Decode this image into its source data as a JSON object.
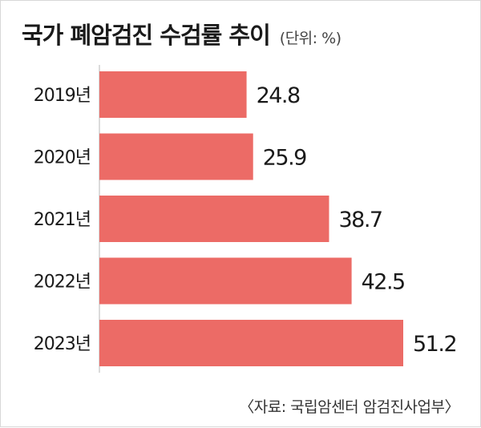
{
  "title": "국가 폐암검진 수검률 추이",
  "unit": "(단위: %)",
  "source": "〈자료: 국립암센터 암검진사업부〉",
  "colors": {
    "bar": "#ec6b66",
    "text": "#1a1a1a",
    "axis": "#cfcfcf"
  },
  "chart_data": {
    "type": "bar",
    "orientation": "horizontal",
    "categories": [
      "2019년",
      "2020년",
      "2021년",
      "2022년",
      "2023년"
    ],
    "values": [
      24.8,
      25.9,
      38.7,
      42.5,
      51.2
    ],
    "data_labels": [
      "24.8",
      "25.9",
      "38.7",
      "42.5",
      "51.2"
    ],
    "unit": "%",
    "xlim": [
      0,
      51.2
    ],
    "grid": false,
    "legend": "none"
  }
}
